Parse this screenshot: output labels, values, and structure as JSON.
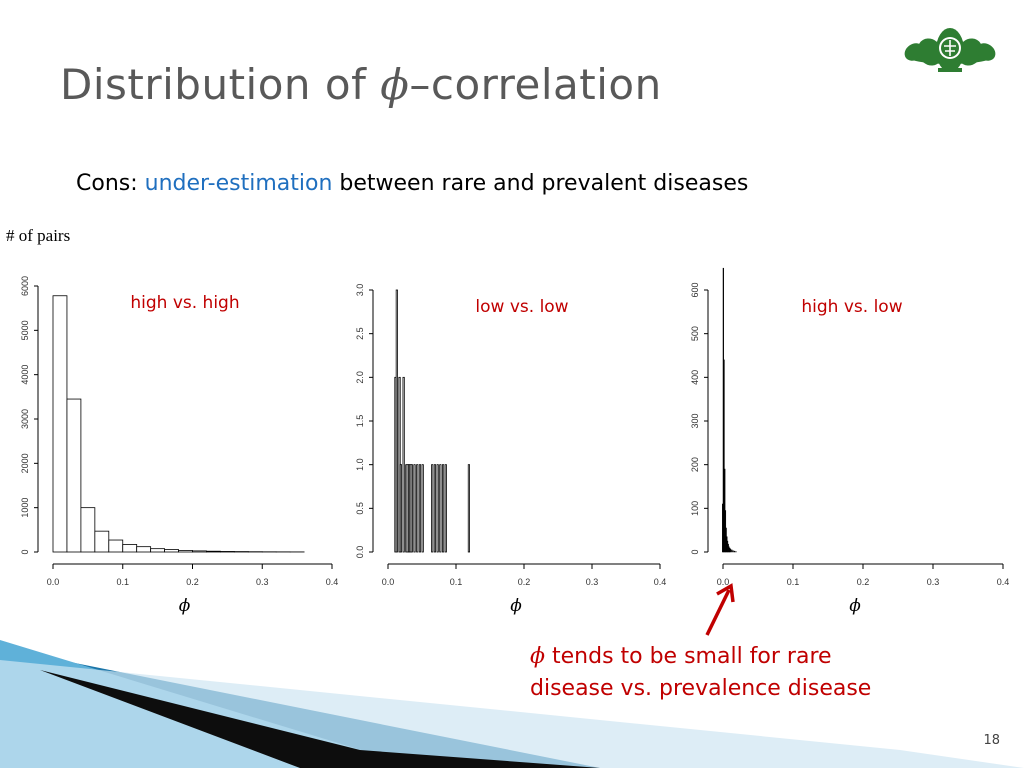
{
  "slide": {
    "title_before": "Distribution of ",
    "title_symbol": "ϕ",
    "title_after": "–correlation",
    "subtitle": {
      "prefix": "Cons",
      "colon": ":  ",
      "highlight": "under-estimation",
      "rest": " between rare and prevalent diseases"
    },
    "y_axis_note": "# of pairs",
    "note_symbol": "ϕ",
    "note_line1": " tends to be small for rare",
    "note_line2": "disease vs. prevalence disease",
    "page_number": "18",
    "logo_icon": "lotus-emblem",
    "arrow_icon": "red-arrow",
    "colors": {
      "title": "#595959",
      "accent": "#1f6fbf",
      "highlight_red": "#c00000",
      "logo_green": "#2e7d32"
    }
  },
  "chart_data": [
    {
      "type": "bar",
      "title": "high  vs. high",
      "xlabel": "ϕ",
      "ylabel": "",
      "xlim": [
        0,
        0.4
      ],
      "ylim": [
        0,
        6000
      ],
      "xticks": [
        "0.0",
        "0.1",
        "0.2",
        "0.3",
        "0.4"
      ],
      "yticks": [
        "0",
        "1000",
        "2000",
        "3000",
        "4000",
        "5000",
        "6000"
      ],
      "bin_width": 0.02,
      "bin_starts": [
        0.0,
        0.02,
        0.04,
        0.06,
        0.08,
        0.1,
        0.12,
        0.14,
        0.16,
        0.18,
        0.2,
        0.22,
        0.24,
        0.26,
        0.28,
        0.3,
        0.32,
        0.34
      ],
      "values": [
        5780,
        3450,
        1000,
        470,
        270,
        170,
        120,
        75,
        55,
        35,
        25,
        18,
        12,
        9,
        6,
        4,
        3,
        2
      ],
      "grid": false
    },
    {
      "type": "bar",
      "title": "low  vs. low",
      "xlabel": "ϕ",
      "ylabel": "",
      "xlim": [
        0,
        0.4
      ],
      "ylim": [
        0,
        3
      ],
      "xticks": [
        "0.0",
        "0.1",
        "0.2",
        "0.3",
        "0.4"
      ],
      "yticks": [
        "0.0",
        "0.5",
        "1.0",
        "1.5",
        "2.0",
        "2.5",
        "3.0"
      ],
      "bin_width": 0.002,
      "bin_starts": [
        0.01,
        0.012,
        0.016,
        0.018,
        0.022,
        0.026,
        0.028,
        0.03,
        0.032,
        0.034,
        0.038,
        0.042,
        0.046,
        0.05,
        0.064,
        0.068,
        0.072,
        0.076,
        0.08,
        0.084,
        0.118
      ],
      "values": [
        2,
        3,
        2,
        1,
        2,
        1,
        1,
        1,
        1,
        1,
        1,
        1,
        1,
        1,
        1,
        1,
        1,
        1,
        1,
        1,
        1
      ],
      "grid": false
    },
    {
      "type": "bar",
      "title": "high  vs. low",
      "xlabel": "ϕ",
      "ylabel": "",
      "xlim": [
        0,
        0.4
      ],
      "ylim": [
        0,
        600
      ],
      "xticks": [
        "0.0",
        "0.1",
        "0.2",
        "0.3",
        "0.4"
      ],
      "yticks": [
        "0",
        "100",
        "200",
        "300",
        "400",
        "500",
        "600"
      ],
      "bin_width": 0.001,
      "bin_starts": [
        -0.001,
        0.0,
        0.001,
        0.002,
        0.003,
        0.004,
        0.005,
        0.006,
        0.007,
        0.008,
        0.009,
        0.01,
        0.012,
        0.014,
        0.016,
        0.018
      ],
      "values": [
        110,
        650,
        440,
        190,
        95,
        55,
        35,
        25,
        18,
        12,
        9,
        7,
        5,
        3,
        2,
        1
      ],
      "grid": false
    }
  ]
}
